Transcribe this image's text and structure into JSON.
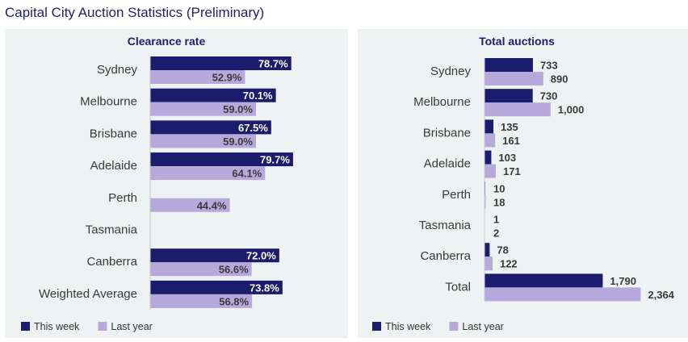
{
  "page": {
    "title": "Capital City Auction Statistics (Preliminary)"
  },
  "colors": {
    "this_week": "#1c1c6e",
    "last_year": "#b7a9db",
    "panel_bg": "#eef2f3",
    "text": "#3a3a3a",
    "title": "#1f1f6b"
  },
  "chart_data": [
    {
      "type": "bar",
      "orientation": "horizontal",
      "title": "Clearance rate",
      "categories": [
        "Sydney",
        "Melbourne",
        "Brisbane",
        "Adelaide",
        "Perth",
        "Tasmania",
        "Canberra",
        "Weighted Average"
      ],
      "series": [
        {
          "name": "This week",
          "values": [
            78.7,
            70.1,
            67.5,
            79.7,
            null,
            null,
            72.0,
            73.8
          ],
          "labels": [
            "78.7%",
            "70.1%",
            "67.5%",
            "79.7%",
            "",
            "",
            "72.0%",
            "73.8%"
          ]
        },
        {
          "name": "Last year",
          "values": [
            52.9,
            59.0,
            59.0,
            64.1,
            44.4,
            null,
            56.6,
            56.8
          ],
          "labels": [
            "52.9%",
            "59.0%",
            "59.0%",
            "64.1%",
            "44.4%",
            "",
            "56.6%",
            "56.8%"
          ]
        }
      ],
      "xlim": [
        0,
        100
      ],
      "legend": "bottom-left"
    },
    {
      "type": "bar",
      "orientation": "horizontal",
      "title": "Total auctions",
      "categories": [
        "Sydney",
        "Melbourne",
        "Brisbane",
        "Adelaide",
        "Perth",
        "Tasmania",
        "Canberra",
        "Total"
      ],
      "series": [
        {
          "name": "This week",
          "values": [
            733,
            730,
            135,
            103,
            10,
            1,
            78,
            1790
          ],
          "labels": [
            "733",
            "730",
            "135",
            "103",
            "10",
            "1",
            "78",
            "1,790"
          ]
        },
        {
          "name": "Last year",
          "values": [
            890,
            1000,
            161,
            171,
            18,
            2,
            122,
            2364
          ],
          "labels": [
            "890",
            "1,000",
            "161",
            "171",
            "18",
            "2",
            "122",
            "2,364"
          ]
        }
      ],
      "xlim": [
        0,
        2700
      ],
      "legend": "bottom-left"
    }
  ]
}
